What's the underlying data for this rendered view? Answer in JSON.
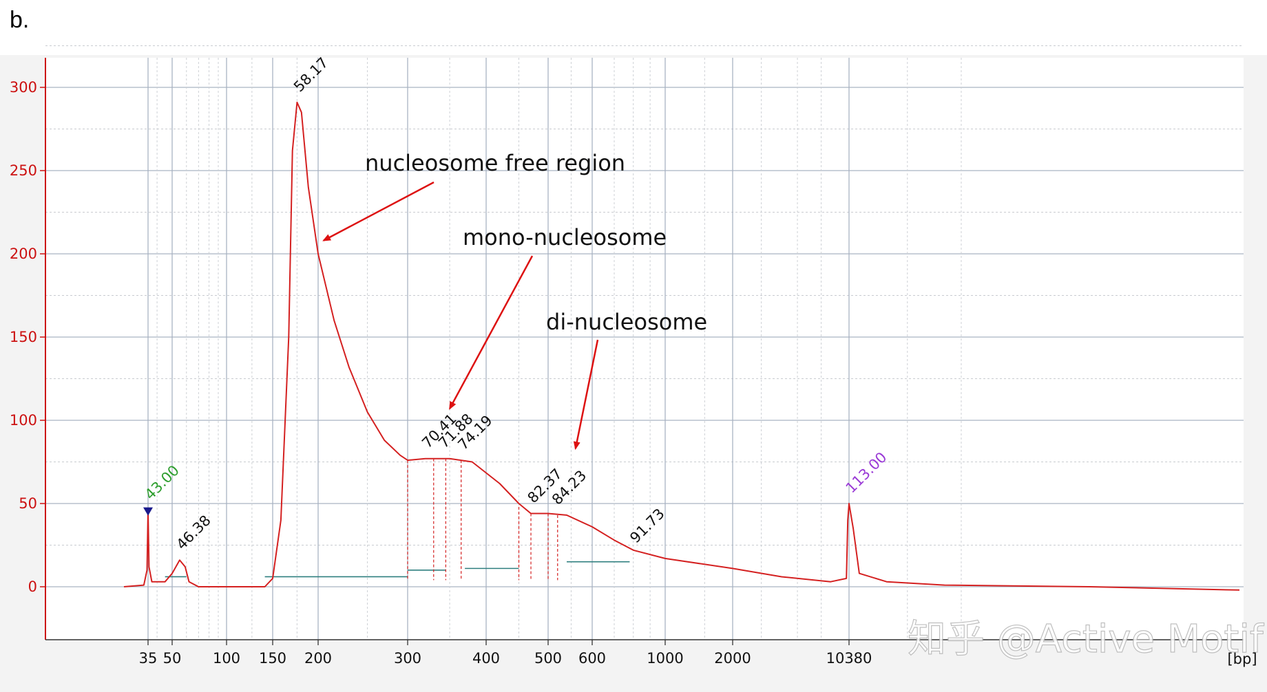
{
  "panel_label": "b.",
  "watermark": "知乎 @Active Motif",
  "colors": {
    "trace": "#d42020",
    "axis": "#cc1111",
    "ladder_low": "#2e9e2e",
    "ladder_high": "#9a3ad6",
    "marker": "#1a1a8c",
    "baseline": "#2f7f7f",
    "arrow": "#dd1111"
  },
  "chart_data": {
    "type": "line",
    "title": "",
    "xlabel": "[bp]",
    "ylabel": "",
    "y_ticks": [
      0,
      50,
      100,
      150,
      200,
      250,
      300
    ],
    "ylim": [
      -30,
      318
    ],
    "x_ticks": [
      "35",
      "50",
      "100",
      "150",
      "200",
      "300",
      "400",
      "500",
      "600",
      "1000",
      "2000",
      "10380"
    ],
    "x_scale": "log (electropherogram)",
    "grid": true,
    "peak_labels": [
      {
        "label": "43.00",
        "bp": 35,
        "value": 46,
        "color": "ladder_low"
      },
      {
        "label": "46.38",
        "bp": 55,
        "value": 16,
        "color": "dark"
      },
      {
        "label": "58.17",
        "bp": 175,
        "value": 291,
        "color": "dark"
      },
      {
        "label": "70.41",
        "bp": 320,
        "value": 77,
        "color": "dark"
      },
      {
        "label": "71.88",
        "bp": 340,
        "value": 77,
        "color": "dark"
      },
      {
        "label": "74.19",
        "bp": 365,
        "value": 76,
        "color": "dark"
      },
      {
        "label": "82.37",
        "bp": 470,
        "value": 44,
        "color": "dark"
      },
      {
        "label": "84.23",
        "bp": 515,
        "value": 43,
        "color": "dark"
      },
      {
        "label": "91.73",
        "bp": 800,
        "value": 20,
        "color": "dark"
      },
      {
        "label": "113.00",
        "bp": 10380,
        "value": 50,
        "color": "ladder_high"
      }
    ],
    "series": [
      {
        "points": [
          [
            25,
            0
          ],
          [
            33,
            1
          ],
          [
            34.5,
            10
          ],
          [
            35,
            46
          ],
          [
            35.5,
            12
          ],
          [
            37,
            3
          ],
          [
            45,
            3
          ],
          [
            50,
            8
          ],
          [
            55,
            16
          ],
          [
            59,
            12
          ],
          [
            62,
            3
          ],
          [
            70,
            0
          ],
          [
            100,
            0
          ],
          [
            140,
            0
          ],
          [
            150,
            5
          ],
          [
            158,
            40
          ],
          [
            166,
            150
          ],
          [
            170,
            262
          ],
          [
            175,
            291
          ],
          [
            180,
            285
          ],
          [
            188,
            240
          ],
          [
            200,
            200
          ],
          [
            215,
            160
          ],
          [
            230,
            132
          ],
          [
            250,
            105
          ],
          [
            270,
            88
          ],
          [
            290,
            79
          ],
          [
            300,
            76
          ],
          [
            320,
            77
          ],
          [
            350,
            77
          ],
          [
            380,
            75
          ],
          [
            420,
            62
          ],
          [
            450,
            50
          ],
          [
            470,
            44
          ],
          [
            500,
            44
          ],
          [
            540,
            43
          ],
          [
            600,
            36
          ],
          [
            700,
            28
          ],
          [
            800,
            22
          ],
          [
            1000,
            17
          ],
          [
            2000,
            11
          ],
          [
            4000,
            6
          ],
          [
            8000,
            3
          ],
          [
            10000,
            5
          ],
          [
            10200,
            40
          ],
          [
            10380,
            50
          ],
          [
            10550,
            35
          ],
          [
            10800,
            8
          ],
          [
            12000,
            3
          ],
          [
            15000,
            1
          ],
          [
            25000,
            0
          ],
          [
            40000,
            -2
          ]
        ]
      }
    ],
    "annotations": [
      {
        "text": "nucleosome free region",
        "arrow_to_bp": 205,
        "arrow_to_value": 208
      },
      {
        "text": "mono-nucleosome",
        "arrow_to_bp": 350,
        "arrow_to_value": 107
      },
      {
        "text": "di-nucleosome",
        "arrow_to_bp": 560,
        "arrow_to_value": 83
      }
    ]
  }
}
